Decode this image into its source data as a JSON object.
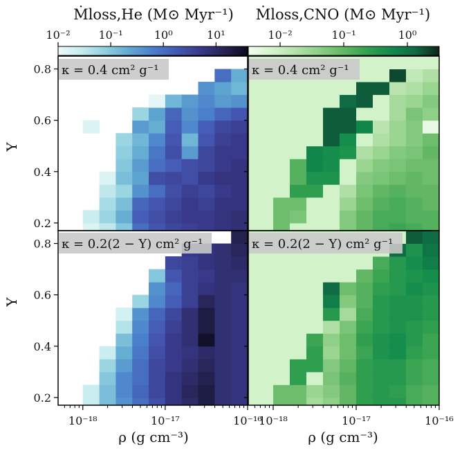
{
  "chart_data": {
    "type": "heatmap",
    "xlabel": "ρ (g cm⁻³)",
    "ylabel": "Y",
    "x_ticks": [
      {
        "value": -18,
        "label": "10⁻¹⁸"
      },
      {
        "value": -17,
        "label": "10⁻¹⁷"
      },
      {
        "value": -16,
        "label": "10⁻¹⁶"
      }
    ],
    "y_ticks": [
      {
        "value": 0.2,
        "label": "0.2"
      },
      {
        "value": 0.4,
        "label": "0.4"
      },
      {
        "value": 0.6,
        "label": "0.6"
      },
      {
        "value": 0.8,
        "label": "0.8"
      }
    ],
    "colorbars": [
      {
        "title": "Ṁloss,He (M⊙ Myr⁻¹)",
        "scale": "log",
        "range": [
          -2,
          1.6
        ],
        "ticks": [
          {
            "value": -2,
            "label": "10⁻²"
          },
          {
            "value": -1,
            "label": "10⁻¹"
          },
          {
            "value": 0,
            "label": "10⁰"
          },
          {
            "value": 1,
            "label": "10¹"
          }
        ],
        "colormap": [
          "#eef9f9",
          "#c6ebee",
          "#8fcfdf",
          "#61a9d1",
          "#4a7fcc",
          "#4459b3",
          "#38398a",
          "#262455",
          "#0b0b1d"
        ]
      },
      {
        "title": "Ṁloss,CNO (M⊙ Myr⁻¹)",
        "scale": "log",
        "range": [
          -2.5,
          0.5
        ],
        "ticks": [
          {
            "value": -2,
            "label": "10⁻²"
          },
          {
            "value": -1,
            "label": "10⁻¹"
          },
          {
            "value": 0,
            "label": "10⁰"
          }
        ],
        "colormap": [
          "#f2fbf0",
          "#d4f4cc",
          "#b5e1ab",
          "#8ccf85",
          "#63b764",
          "#31a04f",
          "#118a4c",
          "#106a43",
          "#0b2418"
        ]
      }
    ],
    "x_edges": [
      -18.3,
      -18.0,
      -17.8,
      -17.6,
      -17.4,
      -17.2,
      -17.0,
      -16.8,
      -16.6,
      -16.4,
      -16.2,
      -16.0
    ],
    "y_edges": [
      0.17,
      0.2,
      0.25,
      0.3,
      0.35,
      0.4,
      0.45,
      0.5,
      0.55,
      0.6,
      0.65,
      0.7,
      0.75,
      0.8,
      0.85
    ],
    "panels": [
      {
        "label": "κ = 0.4 cm² g⁻¹",
        "colorbar": 0,
        "cells": [
          [
            null,
            -1.8,
            -1.5,
            -1.0,
            0.0,
            0.3,
            0.5,
            0.6,
            0.7,
            0.8,
            0.9
          ],
          [
            null,
            -1.6,
            -1.2,
            -0.7,
            0.2,
            0.4,
            0.6,
            0.7,
            0.7,
            0.8,
            0.9
          ],
          [
            null,
            null,
            -1.3,
            -0.9,
            0.1,
            0.3,
            0.5,
            0.7,
            0.6,
            0.8,
            0.8
          ],
          [
            null,
            null,
            -1.5,
            -1.2,
            -0.4,
            0.0,
            0.4,
            0.6,
            0.5,
            0.7,
            0.8
          ],
          [
            null,
            null,
            -1.8,
            -0.9,
            -0.6,
            0.4,
            0.5,
            0.4,
            0.7,
            0.8,
            0.8
          ],
          [
            null,
            null,
            null,
            -1.0,
            -0.5,
            0.0,
            0.2,
            0.4,
            0.5,
            0.7,
            0.8
          ],
          [
            null,
            null,
            null,
            -1.1,
            -0.7,
            -0.1,
            0.4,
            -0.5,
            0.5,
            0.7,
            0.7
          ],
          [
            null,
            null,
            null,
            -1.2,
            -0.8,
            -0.3,
            0.3,
            -0.8,
            0.3,
            0.6,
            0.7
          ],
          [
            null,
            -1.8,
            null,
            null,
            -0.5,
            -0.7,
            0.2,
            -0.3,
            0.2,
            0.5,
            0.6
          ],
          [
            null,
            null,
            null,
            null,
            -1.2,
            -0.6,
            0.1,
            -0.4,
            -0.2,
            0.1,
            0.3
          ],
          [
            null,
            null,
            null,
            null,
            null,
            -1.9,
            -0.8,
            -0.5,
            -0.3,
            -0.5,
            -0.4
          ],
          [
            null,
            null,
            null,
            null,
            null,
            null,
            null,
            null,
            -0.4,
            -0.6,
            -0.8
          ],
          [
            null,
            null,
            null,
            null,
            null,
            null,
            null,
            null,
            null,
            0.0,
            -0.7
          ],
          [
            null,
            null,
            null,
            null,
            null,
            null,
            null,
            null,
            null,
            null,
            null
          ]
        ]
      },
      {
        "label": "κ = 0.4 cm² g⁻¹",
        "colorbar": 1,
        "cells": [
          [
            -2.1,
            -1.1,
            -2.1,
            -2.1,
            -2.1,
            -1.3,
            -1.0,
            -0.8,
            -0.7,
            -0.8,
            -0.9
          ],
          [
            -2.1,
            -1.1,
            -1.2,
            -2.1,
            -2.1,
            -1.3,
            -1.0,
            -0.8,
            -0.8,
            -0.9,
            -0.9
          ],
          [
            -2.1,
            -1.1,
            -1.1,
            -2.1,
            -2.1,
            -1.5,
            -1.1,
            -0.9,
            -0.8,
            -0.9,
            -1.0
          ],
          [
            -2.1,
            -2.1,
            -0.6,
            -0.6,
            -2.1,
            -1.7,
            -1.2,
            -1.0,
            -0.9,
            -1.0,
            -1.0
          ],
          [
            -2.1,
            -2.1,
            -0.9,
            -0.4,
            -0.4,
            -2.1,
            -1.3,
            -1.2,
            -1.1,
            -1.0,
            -1.1
          ],
          [
            -2.1,
            -2.1,
            -0.9,
            -0.2,
            -0.3,
            -2.1,
            -1.5,
            -1.3,
            -1.2,
            -1.1,
            -1.1
          ],
          [
            -2.1,
            -2.1,
            -2.1,
            -0.2,
            -0.3,
            -0.4,
            -1.7,
            -1.5,
            -1.3,
            -1.2,
            -1.0
          ],
          [
            -2.1,
            -2.1,
            -2.1,
            -2.1,
            0.2,
            -0.3,
            -2.1,
            -1.7,
            -1.5,
            -1.3,
            -1.1
          ],
          [
            -2.1,
            -2.1,
            -2.1,
            -2.1,
            0.2,
            0.2,
            -0.2,
            -1.8,
            -1.5,
            -1.3,
            -2.4
          ],
          [
            -2.1,
            -2.1,
            -2.1,
            -2.1,
            0.2,
            0.2,
            -2.1,
            -2.1,
            -1.6,
            -1.2,
            -1.4
          ],
          [
            -2.1,
            -2.1,
            -2.1,
            -2.1,
            -2.1,
            0.1,
            0.2,
            -2.1,
            -1.6,
            -1.5,
            -1.3
          ],
          [
            -2.1,
            -2.1,
            -2.1,
            -2.1,
            -2.1,
            -2.1,
            0.2,
            0.2,
            -1.8,
            -1.7,
            -1.5
          ],
          [
            -2.1,
            -2.1,
            -2.1,
            -2.1,
            -2.1,
            -2.1,
            -2.1,
            -2.1,
            0.3,
            -1.9,
            -1.7
          ],
          [
            -2.1,
            -2.1,
            -2.1,
            -2.1,
            -2.1,
            -2.1,
            -2.1,
            -2.1,
            -2.1,
            -2.1,
            -2.1
          ]
        ]
      },
      {
        "label": "κ = 0.2(2 − Y) cm² g⁻¹",
        "colorbar": 0,
        "cells": [
          [
            null,
            -1.6,
            -0.9,
            -0.4,
            0.0,
            0.4,
            0.8,
            1.0,
            1.3,
            0.9,
            0.8
          ],
          [
            null,
            -1.6,
            -0.9,
            -0.3,
            0.1,
            0.5,
            0.8,
            1.1,
            1.3,
            0.9,
            0.8
          ],
          [
            null,
            null,
            -1.0,
            -0.3,
            0.0,
            0.5,
            0.8,
            1.0,
            1.2,
            0.9,
            0.8
          ],
          [
            null,
            null,
            -1.2,
            -0.5,
            0.0,
            0.5,
            0.7,
            0.9,
            1.1,
            0.9,
            0.8
          ],
          [
            null,
            null,
            -1.6,
            -0.7,
            -0.1,
            0.4,
            0.7,
            0.8,
            1.0,
            0.9,
            0.8
          ],
          [
            null,
            null,
            null,
            -0.9,
            -0.2,
            0.3,
            0.7,
            0.9,
            1.5,
            0.9,
            0.8
          ],
          [
            null,
            null,
            null,
            -1.4,
            -0.3,
            0.2,
            0.6,
            0.9,
            1.3,
            0.9,
            0.8
          ],
          [
            null,
            null,
            null,
            -1.7,
            -0.4,
            0.1,
            0.5,
            0.9,
            1.3,
            0.9,
            0.8
          ],
          [
            null,
            null,
            null,
            null,
            -1.2,
            -0.3,
            0.2,
            0.6,
            1.1,
            0.9,
            0.8
          ],
          [
            null,
            null,
            null,
            null,
            null,
            -0.4,
            0.1,
            0.6,
            0.8,
            0.9,
            0.8
          ],
          [
            null,
            null,
            null,
            null,
            null,
            -1.0,
            0.3,
            0.6,
            0.7,
            0.9,
            0.9
          ],
          [
            null,
            null,
            null,
            null,
            null,
            null,
            0.5,
            0.6,
            0.8,
            0.9,
            1.0
          ],
          [
            null,
            null,
            null,
            null,
            null,
            null,
            null,
            0.7,
            0.8,
            0.9,
            1.1
          ],
          [
            null,
            null,
            null,
            null,
            null,
            null,
            null,
            null,
            null,
            null,
            1.2
          ]
        ]
      },
      {
        "label": "κ = 0.2(2 − Y) cm² g⁻¹",
        "colorbar": 1,
        "cells": [
          [
            -2.1,
            -1.1,
            -1.1,
            -1.6,
            -1.4,
            -1.0,
            -0.6,
            -0.5,
            -0.5,
            -0.8,
            -0.9
          ],
          [
            -2.1,
            -1.1,
            -1.1,
            -1.5,
            -1.3,
            -1.0,
            -0.6,
            -0.5,
            -0.6,
            -0.8,
            -0.9
          ],
          [
            -2.1,
            -2.1,
            -0.6,
            -2.1,
            -1.2,
            -0.9,
            -0.6,
            -0.5,
            -0.5,
            -0.7,
            -0.8
          ],
          [
            -2.1,
            -2.1,
            -0.6,
            -0.6,
            -1.3,
            -1.0,
            -0.6,
            -0.5,
            -0.5,
            -0.7,
            -0.8
          ],
          [
            -2.1,
            -2.1,
            -2.1,
            -0.6,
            -1.5,
            -1.1,
            -0.7,
            -0.4,
            -0.3,
            -0.6,
            -0.7
          ],
          [
            -2.1,
            -2.1,
            -2.1,
            -0.7,
            -1.4,
            -1.1,
            -0.6,
            -0.4,
            -0.3,
            -0.5,
            -0.7
          ],
          [
            -2.1,
            -2.1,
            -2.1,
            -2.1,
            -1.7,
            -1.2,
            -0.7,
            -0.5,
            -0.4,
            -0.5,
            -0.6
          ],
          [
            -2.1,
            -2.1,
            -2.1,
            -2.1,
            -0.5,
            -1.6,
            -0.8,
            -0.5,
            -0.4,
            -0.4,
            -0.5
          ],
          [
            -2.1,
            -2.1,
            -2.1,
            -2.1,
            -0.1,
            -1.3,
            -0.9,
            -0.5,
            -0.4,
            -0.4,
            -0.5
          ],
          [
            -2.1,
            -2.1,
            -2.1,
            -2.1,
            0.1,
            -1.1,
            -0.9,
            -0.6,
            -0.5,
            -0.3,
            -0.4
          ],
          [
            -2.1,
            -2.1,
            -2.1,
            -2.1,
            -2.1,
            -2.1,
            -1.0,
            -0.7,
            -0.5,
            -0.4,
            -0.3
          ],
          [
            -2.1,
            -2.1,
            -2.1,
            -2.1,
            -2.1,
            -2.1,
            -2.1,
            -0.8,
            -0.5,
            -0.3,
            -0.1
          ],
          [
            -2.1,
            -2.1,
            -2.1,
            -2.1,
            -2.1,
            -2.1,
            -2.1,
            -2.1,
            0.1,
            -0.4,
            0.0
          ],
          [
            -2.1,
            -2.1,
            -2.1,
            -2.1,
            -2.1,
            -2.1,
            -2.1,
            -2.1,
            -2.1,
            0.2,
            0.1
          ]
        ]
      }
    ]
  }
}
